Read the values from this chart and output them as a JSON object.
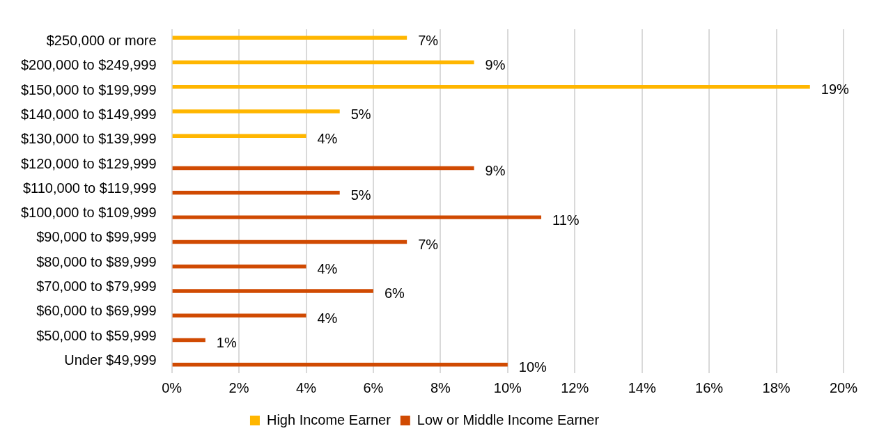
{
  "chart_data": {
    "type": "bar",
    "orientation": "horizontal",
    "categories": [
      "$250,000 or more",
      "$200,000 to $249,999",
      "$150,000 to $199,999",
      "$140,000 to $149,999",
      "$130,000 to $139,999",
      "$120,000 to $129,999",
      "$110,000 to $119,999",
      "$100,000 to $109,999",
      "$90,000 to $99,999",
      "$80,000 to $89,999",
      "$70,000 to $79,999",
      "$60,000 to $69,999",
      "$50,000 to $59,999",
      "Under $49,999"
    ],
    "series": [
      {
        "name": "High Income Earner",
        "color": "#ffb600",
        "values": [
          7,
          9,
          19,
          5,
          4,
          null,
          null,
          null,
          null,
          null,
          null,
          null,
          null,
          null
        ],
        "value_labels": [
          "7%",
          "9%",
          "19%",
          "5%",
          "4%",
          null,
          null,
          null,
          null,
          null,
          null,
          null,
          null,
          null
        ]
      },
      {
        "name": "Low or Middle Income Earner",
        "color": "#d04a02",
        "values": [
          null,
          null,
          null,
          null,
          null,
          9,
          5,
          11,
          7,
          4,
          6,
          4,
          1,
          10
        ],
        "value_labels": [
          null,
          null,
          null,
          null,
          null,
          "9%",
          "5%",
          "11%",
          "7%",
          "4%",
          "6%",
          "4%",
          "1%",
          "10%"
        ]
      }
    ],
    "xlim": [
      0,
      20
    ],
    "xticks": [
      {
        "value": 0,
        "label": "0%"
      },
      {
        "value": 2,
        "label": "2%"
      },
      {
        "value": 4,
        "label": "4%"
      },
      {
        "value": 6,
        "label": "6%"
      },
      {
        "value": 8,
        "label": "8%"
      },
      {
        "value": 10,
        "label": "10%"
      },
      {
        "value": 12,
        "label": "12%"
      },
      {
        "value": 14,
        "label": "14%"
      },
      {
        "value": 16,
        "label": "16%"
      },
      {
        "value": 18,
        "label": "18%"
      },
      {
        "value": 20,
        "label": "20%"
      }
    ],
    "grid": "x",
    "legend": "bottom"
  }
}
